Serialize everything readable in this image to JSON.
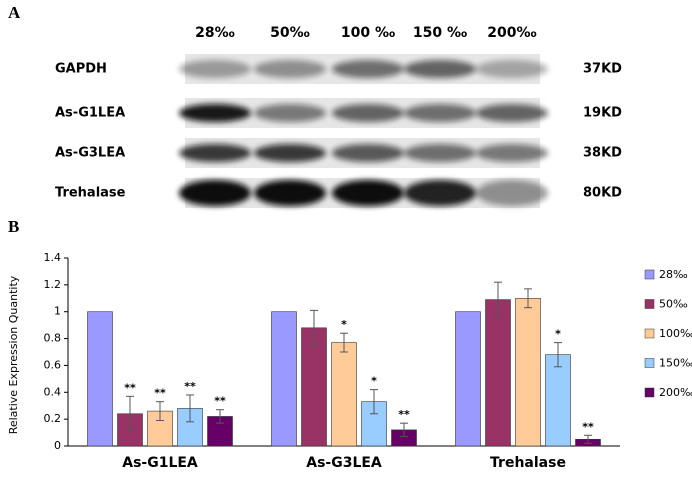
{
  "panel_a": {
    "label": "A",
    "lanes": [
      "28‰",
      "50‰",
      "100 ‰",
      "150 ‰",
      "200‰"
    ],
    "rows": [
      {
        "name": "GAPDH",
        "size": "37KD"
      },
      {
        "name": "As-G1LEA",
        "size": "19KD"
      },
      {
        "name": "As-G3LEA",
        "size": "38KD"
      },
      {
        "name": "Trehalase",
        "size": "80KD"
      }
    ]
  },
  "panel_b_label": "B",
  "chart_data": {
    "type": "bar",
    "y_label": "Relative Expression Quantity",
    "categories": [
      "As-G1LEA",
      "As-G3LEA",
      "Trehalase"
    ],
    "ylim": [
      0,
      1.4
    ],
    "yticks": [
      0,
      0.2,
      0.4,
      0.6,
      0.8,
      1,
      1.2,
      1.4
    ],
    "grid": false,
    "legend": "right",
    "series": [
      {
        "name": "28‰",
        "color": "#9999ff",
        "values": [
          1,
          1,
          1
        ]
      },
      {
        "name": "50‰",
        "color": "#993366",
        "values": [
          0.24,
          0.88,
          1.09
        ],
        "errors": [
          0.13,
          0.13,
          0.13
        ],
        "stars": [
          "**",
          null,
          null
        ]
      },
      {
        "name": "100‰",
        "color": "#ffcc99",
        "values": [
          0.26,
          0.77,
          1.1
        ],
        "errors": [
          0.07,
          0.07,
          0.07
        ],
        "stars": [
          "**",
          "*",
          null
        ]
      },
      {
        "name": "150‰",
        "color": "#99ccff",
        "values": [
          0.28,
          0.33,
          0.68
        ],
        "errors": [
          0.1,
          0.09,
          0.09
        ],
        "stars": [
          "**",
          "*",
          "*"
        ]
      },
      {
        "name": "200‰",
        "color": "#660066",
        "values": [
          0.22,
          0.12,
          0.05
        ],
        "errors": [
          0.05,
          0.05,
          0.03
        ],
        "stars": [
          "**",
          "**",
          "**"
        ]
      }
    ]
  }
}
